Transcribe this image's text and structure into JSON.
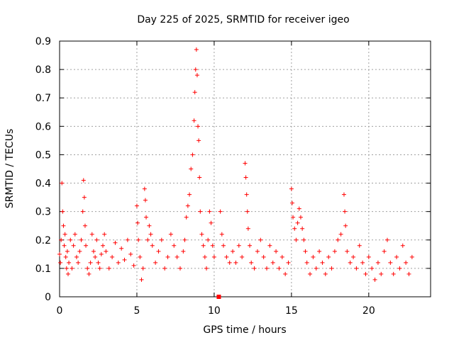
{
  "chart_data": {
    "type": "scatter",
    "title": "Day 225 of 2025, SRMTID for receiver igeo",
    "xlabel": "GPS time / hours",
    "ylabel": "SRMTID / TECUs",
    "xlim": [
      0,
      24
    ],
    "ylim": [
      0,
      0.9
    ],
    "xticks": [
      0,
      5,
      10,
      15,
      20
    ],
    "yticks": [
      0,
      0.1,
      0.2,
      0.3,
      0.4,
      0.5,
      0.6,
      0.7,
      0.8,
      0.9
    ],
    "xtick_labels": [
      "0",
      "5",
      "10",
      "15",
      "20"
    ],
    "ytick_labels": [
      "0",
      "0.1",
      "0.2",
      "0.3",
      "0.4",
      "0.5",
      "0.6",
      "0.7",
      "0.8",
      "0.9"
    ],
    "grid": true,
    "marker": "+",
    "color": "#ff0000",
    "series": [
      {
        "name": "SRMTID",
        "points": [
          [
            0.0,
            0.15
          ],
          [
            0.05,
            0.12
          ],
          [
            0.1,
            0.2
          ],
          [
            0.15,
            0.4
          ],
          [
            0.2,
            0.3
          ],
          [
            0.25,
            0.25
          ],
          [
            0.3,
            0.18
          ],
          [
            0.35,
            0.22
          ],
          [
            0.4,
            0.14
          ],
          [
            0.45,
            0.1
          ],
          [
            0.5,
            0.16
          ],
          [
            0.55,
            0.08
          ],
          [
            0.6,
            0.12
          ],
          [
            0.7,
            0.2
          ],
          [
            0.8,
            0.1
          ],
          [
            0.9,
            0.18
          ],
          [
            1.0,
            0.22
          ],
          [
            1.1,
            0.14
          ],
          [
            1.2,
            0.12
          ],
          [
            1.3,
            0.16
          ],
          [
            1.4,
            0.2
          ],
          [
            1.5,
            0.3
          ],
          [
            1.55,
            0.41
          ],
          [
            1.6,
            0.35
          ],
          [
            1.65,
            0.25
          ],
          [
            1.7,
            0.18
          ],
          [
            1.8,
            0.1
          ],
          [
            1.9,
            0.08
          ],
          [
            2.0,
            0.12
          ],
          [
            2.1,
            0.22
          ],
          [
            2.2,
            0.16
          ],
          [
            2.3,
            0.14
          ],
          [
            2.4,
            0.2
          ],
          [
            2.5,
            0.12
          ],
          [
            2.6,
            0.1
          ],
          [
            2.7,
            0.15
          ],
          [
            2.8,
            0.18
          ],
          [
            2.9,
            0.22
          ],
          [
            3.0,
            0.16
          ],
          [
            3.2,
            0.1
          ],
          [
            3.4,
            0.14
          ],
          [
            3.6,
            0.19
          ],
          [
            3.8,
            0.12
          ],
          [
            4.0,
            0.17
          ],
          [
            4.2,
            0.13
          ],
          [
            4.4,
            0.2
          ],
          [
            4.6,
            0.15
          ],
          [
            4.8,
            0.11
          ],
          [
            5.0,
            0.32
          ],
          [
            5.05,
            0.26
          ],
          [
            5.1,
            0.2
          ],
          [
            5.2,
            0.14
          ],
          [
            5.3,
            0.06
          ],
          [
            5.4,
            0.1
          ],
          [
            5.5,
            0.38
          ],
          [
            5.55,
            0.34
          ],
          [
            5.6,
            0.28
          ],
          [
            5.7,
            0.2
          ],
          [
            5.8,
            0.25
          ],
          [
            5.9,
            0.22
          ],
          [
            6.0,
            0.18
          ],
          [
            6.2,
            0.12
          ],
          [
            6.4,
            0.16
          ],
          [
            6.6,
            0.2
          ],
          [
            6.8,
            0.1
          ],
          [
            7.0,
            0.14
          ],
          [
            7.2,
            0.22
          ],
          [
            7.4,
            0.18
          ],
          [
            7.6,
            0.14
          ],
          [
            7.8,
            0.1
          ],
          [
            8.0,
            0.16
          ],
          [
            8.1,
            0.2
          ],
          [
            8.2,
            0.28
          ],
          [
            8.3,
            0.32
          ],
          [
            8.4,
            0.36
          ],
          [
            8.5,
            0.45
          ],
          [
            8.6,
            0.5
          ],
          [
            8.7,
            0.62
          ],
          [
            8.75,
            0.72
          ],
          [
            8.8,
            0.8
          ],
          [
            8.85,
            0.87
          ],
          [
            8.9,
            0.78
          ],
          [
            8.95,
            0.6
          ],
          [
            9.0,
            0.55
          ],
          [
            9.05,
            0.42
          ],
          [
            9.1,
            0.3
          ],
          [
            9.2,
            0.22
          ],
          [
            9.3,
            0.18
          ],
          [
            9.4,
            0.14
          ],
          [
            9.5,
            0.1
          ],
          [
            9.6,
            0.2
          ],
          [
            9.7,
            0.3
          ],
          [
            9.8,
            0.26
          ],
          [
            9.9,
            0.18
          ],
          [
            10.0,
            0.14
          ],
          [
            10.3,
            0.0
          ],
          [
            10.4,
            0.3
          ],
          [
            10.5,
            0.22
          ],
          [
            10.6,
            0.18
          ],
          [
            10.8,
            0.14
          ],
          [
            11.0,
            0.12
          ],
          [
            11.2,
            0.16
          ],
          [
            11.4,
            0.12
          ],
          [
            11.6,
            0.18
          ],
          [
            11.8,
            0.14
          ],
          [
            12.0,
            0.47
          ],
          [
            12.05,
            0.42
          ],
          [
            12.1,
            0.36
          ],
          [
            12.15,
            0.3
          ],
          [
            12.2,
            0.24
          ],
          [
            12.3,
            0.18
          ],
          [
            12.4,
            0.12
          ],
          [
            12.6,
            0.1
          ],
          [
            12.8,
            0.16
          ],
          [
            13.0,
            0.2
          ],
          [
            13.2,
            0.14
          ],
          [
            13.4,
            0.1
          ],
          [
            13.6,
            0.18
          ],
          [
            13.8,
            0.12
          ],
          [
            14.0,
            0.16
          ],
          [
            14.2,
            0.1
          ],
          [
            14.4,
            0.14
          ],
          [
            14.6,
            0.08
          ],
          [
            14.8,
            0.12
          ],
          [
            15.0,
            0.38
          ],
          [
            15.05,
            0.33
          ],
          [
            15.1,
            0.28
          ],
          [
            15.2,
            0.24
          ],
          [
            15.3,
            0.2
          ],
          [
            15.4,
            0.26
          ],
          [
            15.5,
            0.31
          ],
          [
            15.6,
            0.28
          ],
          [
            15.7,
            0.24
          ],
          [
            15.8,
            0.2
          ],
          [
            15.9,
            0.16
          ],
          [
            16.0,
            0.12
          ],
          [
            16.2,
            0.08
          ],
          [
            16.4,
            0.14
          ],
          [
            16.6,
            0.1
          ],
          [
            16.8,
            0.16
          ],
          [
            17.0,
            0.12
          ],
          [
            17.2,
            0.08
          ],
          [
            17.4,
            0.14
          ],
          [
            17.6,
            0.1
          ],
          [
            17.8,
            0.16
          ],
          [
            18.0,
            0.2
          ],
          [
            18.2,
            0.22
          ],
          [
            18.4,
            0.36
          ],
          [
            18.45,
            0.3
          ],
          [
            18.5,
            0.25
          ],
          [
            18.6,
            0.16
          ],
          [
            18.8,
            0.12
          ],
          [
            19.0,
            0.14
          ],
          [
            19.2,
            0.1
          ],
          [
            19.4,
            0.18
          ],
          [
            19.6,
            0.12
          ],
          [
            19.8,
            0.08
          ],
          [
            20.0,
            0.14
          ],
          [
            20.2,
            0.1
          ],
          [
            20.4,
            0.06
          ],
          [
            20.6,
            0.12
          ],
          [
            20.8,
            0.08
          ],
          [
            21.0,
            0.16
          ],
          [
            21.2,
            0.2
          ],
          [
            21.4,
            0.12
          ],
          [
            21.6,
            0.08
          ],
          [
            21.8,
            0.14
          ],
          [
            22.0,
            0.1
          ],
          [
            22.2,
            0.18
          ],
          [
            22.4,
            0.12
          ],
          [
            22.6,
            0.08
          ],
          [
            22.8,
            0.14
          ]
        ]
      }
    ]
  }
}
